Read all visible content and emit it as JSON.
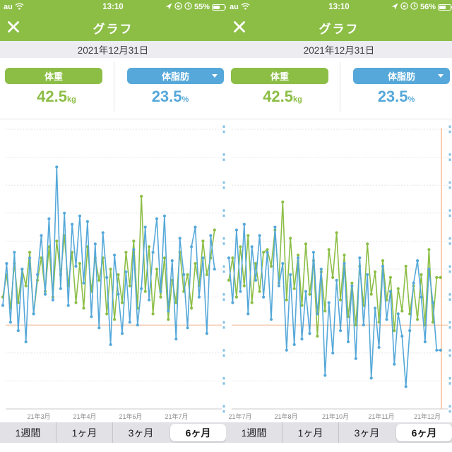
{
  "colors": {
    "green": "#8cbe46",
    "blue": "#55a8d9",
    "orange": "#f2b488",
    "gridline": "#e5e5e8",
    "axis": "#c9c9ce",
    "label_gray": "#8a8a8e"
  },
  "phones": [
    {
      "status_bar": {
        "carrier": "au",
        "time": "13:10",
        "battery": "55%"
      },
      "header": {
        "title": "グラフ"
      },
      "date_bar": {
        "date": "2021年12月31日"
      },
      "metrics": {
        "weight": {
          "label": "体重",
          "value": "42.5",
          "unit": "kg"
        },
        "fat": {
          "label": "体脂肪",
          "value": "23.5",
          "unit": "%"
        }
      },
      "range_tabs": {
        "items": [
          "1週間",
          "1ヶ月",
          "3ヶ月",
          "6ヶ月"
        ],
        "selected": "6ヶ月"
      },
      "chart_data": {
        "type": "line",
        "note": "6-month daily weight/body-fat chart; y in gridline-row units (0=top,10=bottom axis), x evenly spaced daily points",
        "goal_line_row": 7,
        "cursor_x": null,
        "x_axis_month_labels": [
          {
            "label": "21年3月",
            "x": 55
          },
          {
            "label": "21年4月",
            "x": 120
          },
          {
            "label": "21年6月",
            "x": 185
          },
          {
            "label": "21年7月",
            "x": 250
          }
        ],
        "series": [
          {
            "key": "weight",
            "name": "体重",
            "color": "green",
            "values": [
              6.0,
              5.2,
              6.4,
              4.8,
              6.2,
              5.0,
              5.6,
              4.4,
              6.6,
              5.4,
              4.6,
              5.8,
              4.2,
              6.0,
              4.0,
              5.2,
              3.8,
              5.6,
              4.4,
              6.2,
              4.8,
              6.4,
              4.2,
              5.8,
              4.6,
              5.4,
              4.6,
              6.6,
              5.0,
              6.8,
              5.2,
              6.2,
              4.4,
              5.6,
              4.0,
              6.4,
              2.4,
              5.8,
              4.2,
              6.6,
              5.0,
              6.0,
              4.6,
              6.8,
              5.4,
              6.2,
              4.4,
              5.8,
              5.2,
              6.4,
              4.8,
              5.6,
              4.0,
              5.2,
              4.6,
              3.6
            ]
          },
          {
            "key": "fat",
            "name": "体脂肪",
            "color": "blue",
            "values": [
              6.3,
              4.8,
              6.9,
              4.4,
              7.2,
              5.0,
              7.6,
              4.6,
              6.6,
              5.2,
              3.8,
              5.9,
              3.2,
              6.1,
              1.35,
              5.7,
              3.0,
              6.3,
              3.4,
              4.9,
              3.1,
              5.5,
              3.3,
              6.7,
              4.1,
              7.1,
              3.7,
              5.3,
              7.7,
              4.5,
              5.9,
              7.3,
              5.1,
              6.9,
              4.3,
              7.0,
              5.7,
              3.5,
              6.1,
              4.4,
              3.2,
              5.8,
              3.1,
              6.5,
              4.7,
              7.5,
              3.9,
              5.2,
              7.1,
              4.2,
              3.5,
              6.0,
              4.6,
              7.3,
              3.8,
              5.0
            ]
          }
        ]
      }
    },
    {
      "status_bar": {
        "carrier": "au",
        "time": "13:10",
        "battery": "56%"
      },
      "header": {
        "title": "グラフ"
      },
      "date_bar": {
        "date": "2021年12月31日"
      },
      "metrics": {
        "weight": {
          "label": "体重",
          "value": "42.5",
          "unit": "kg"
        },
        "fat": {
          "label": "体脂肪",
          "value": "23.5",
          "unit": "%"
        }
      },
      "range_tabs": {
        "items": [
          "1週間",
          "1ヶ月",
          "3ヶ月",
          "6ヶ月"
        ],
        "selected": "6ヶ月"
      },
      "chart_data": {
        "type": "line",
        "note": "6-month daily weight/body-fat chart; orange vertical cursor marks selected date 2021/12/31",
        "goal_line_row": 7,
        "cursor_x": 305,
        "x_axis_month_labels": [
          {
            "label": "21年7月",
            "x": 20
          },
          {
            "label": "21年8月",
            "x": 85
          },
          {
            "label": "21年10月",
            "x": 155
          },
          {
            "label": "21年11月",
            "x": 220
          },
          {
            "label": "21年12月",
            "x": 285
          }
        ],
        "series": [
          {
            "key": "weight",
            "name": "体重",
            "color": "green",
            "values": [
              5.4,
              4.6,
              6.0,
              4.2,
              5.6,
              3.8,
              6.2,
              4.8,
              5.8,
              4.4,
              4.3,
              4.9,
              3.6,
              5.5,
              2.6,
              6.1,
              3.9,
              5.7,
              4.5,
              6.3,
              4.1,
              5.9,
              4.7,
              7.4,
              5.1,
              6.5,
              4.3,
              5.3,
              3.7,
              6.1,
              4.5,
              6.7,
              5.5,
              7.0,
              4.9,
              6.3,
              4.1,
              5.9,
              5.1,
              6.9,
              4.7,
              6.1,
              5.3,
              7.2,
              5.7,
              6.5,
              4.9,
              6.6,
              5.6,
              6.8,
              5.2,
              7.0,
              4.3,
              6.9,
              5.3,
              5.3
            ]
          },
          {
            "key": "fat",
            "name": "体脂肪",
            "color": "blue",
            "values": [
              4.6,
              6.2,
              3.6,
              5.8,
              3.4,
              6.6,
              4.2,
              5.4,
              3.8,
              6.0,
              4.4,
              6.8,
              3.5,
              5.6,
              4.8,
              7.9,
              5.2,
              7.7,
              4.6,
              7.5,
              5.8,
              7.3,
              4.4,
              6.6,
              5.0,
              8.8,
              6.2,
              8.0,
              5.4,
              7.2,
              4.8,
              7.6,
              5.6,
              8.2,
              4.6,
              7.0,
              5.2,
              8.9,
              6.4,
              7.8,
              4.9,
              6.8,
              5.8,
              8.4,
              6.6,
              7.4,
              9.2,
              7.2,
              5.5,
              4.7,
              6.0,
              7.6,
              5.0,
              6.2,
              7.9,
              7.9
            ]
          }
        ]
      }
    }
  ]
}
